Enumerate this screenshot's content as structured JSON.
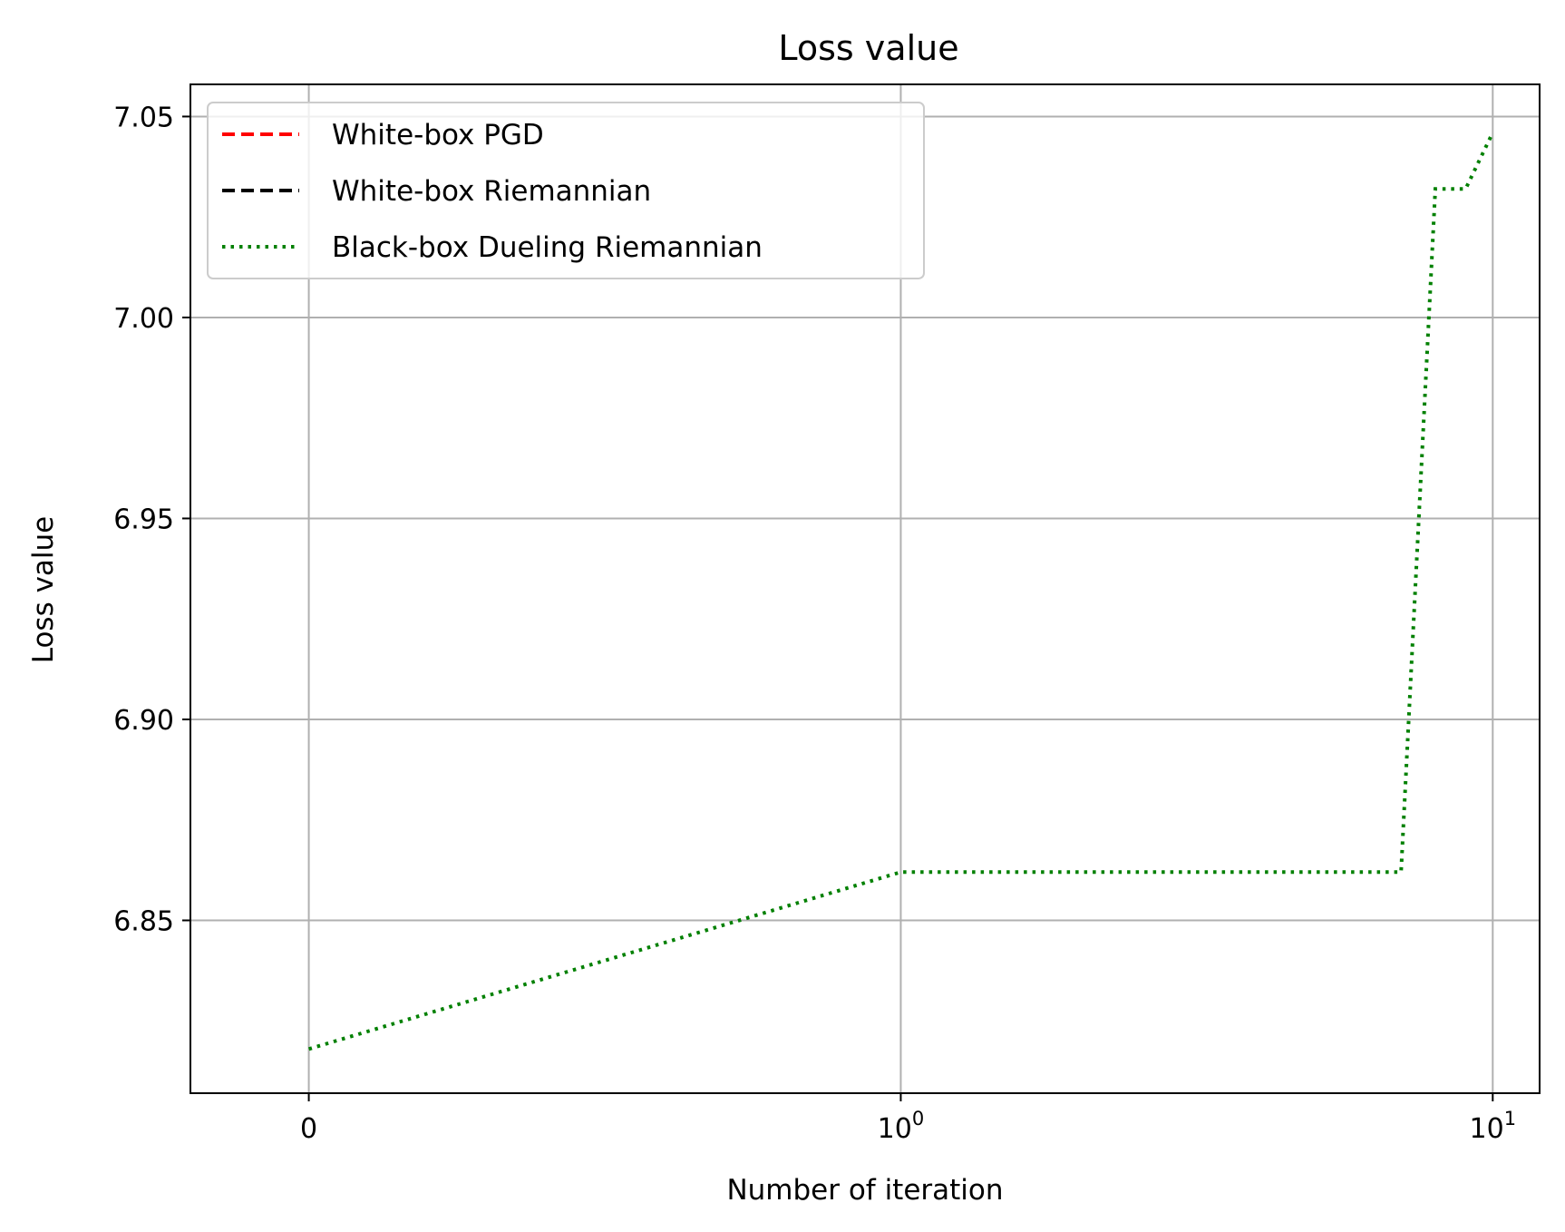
{
  "chart_data": {
    "type": "line",
    "title": "Loss value",
    "xlabel": "Number of iteration",
    "ylabel": "Loss value",
    "xscale": "symlog",
    "xlim": [
      -0.2,
      12
    ],
    "ylim": [
      6.807,
      7.058
    ],
    "x_ticks": [
      {
        "value": 0,
        "label": "0",
        "exp": ""
      },
      {
        "value": 1,
        "label": "10",
        "exp": "0"
      },
      {
        "value": 10,
        "label": "10",
        "exp": "1"
      }
    ],
    "y_ticks": [
      {
        "value": 6.85,
        "label": "6.85"
      },
      {
        "value": 6.9,
        "label": "6.90"
      },
      {
        "value": 6.95,
        "label": "6.95"
      },
      {
        "value": 7.0,
        "label": "7.00"
      },
      {
        "value": 7.05,
        "label": "7.05"
      }
    ],
    "grid": true,
    "legend_position": "top-left",
    "series": [
      {
        "name": "White-box PGD",
        "color": "#ff0000",
        "style": "dashed",
        "x": [],
        "y": []
      },
      {
        "name": "White-box Riemannian",
        "color": "#000000",
        "style": "dashed",
        "x": [],
        "y": []
      },
      {
        "name": "Black-box Dueling Riemannian",
        "color": "#008000",
        "style": "dotted",
        "x": [
          0,
          1,
          2,
          3,
          4,
          5,
          6,
          7,
          8,
          9,
          10
        ],
        "y": [
          6.818,
          6.862,
          6.862,
          6.862,
          6.862,
          6.862,
          6.862,
          6.862,
          7.032,
          7.032,
          7.046
        ]
      }
    ]
  }
}
